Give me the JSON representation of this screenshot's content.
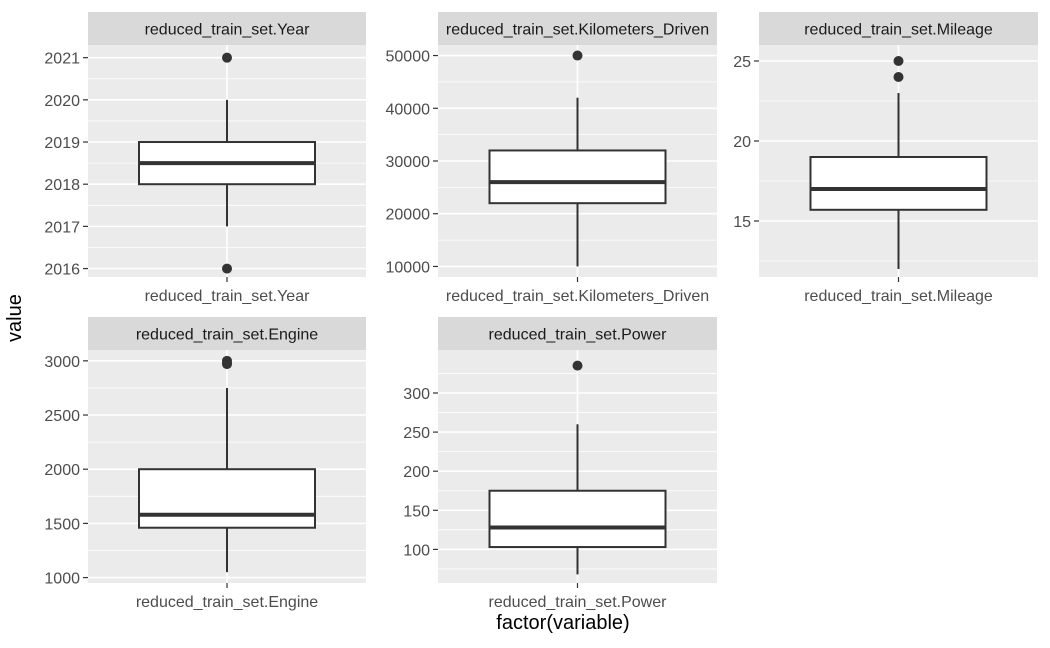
{
  "chart_data": {
    "type": "boxplot",
    "ylabel": "value",
    "xlabel": "factor(variable)",
    "panels": [
      {
        "strip": "reduced_train_set.Year",
        "category": "reduced_train_set.Year",
        "ylim": [
          2015.8,
          2021.3
        ],
        "yticks": [
          2016,
          2017,
          2018,
          2019,
          2020,
          2021
        ],
        "box": {
          "whisker_low": 2017,
          "q1": 2018,
          "median": 2018.5,
          "q3": 2019,
          "whisker_high": 2020
        },
        "outliers": [
          2021,
          2016
        ]
      },
      {
        "strip": "reduced_train_set.Kilometers_Driven",
        "category": "reduced_train_set.Kilometers_Driven",
        "ylim": [
          8000,
          52000
        ],
        "yticks": [
          10000,
          20000,
          30000,
          40000,
          50000
        ],
        "box": {
          "whisker_low": 10000,
          "q1": 22000,
          "median": 26000,
          "q3": 32000,
          "whisker_high": 42000
        },
        "outliers": [
          50000
        ]
      },
      {
        "strip": "reduced_train_set.Mileage",
        "category": "reduced_train_set.Mileage",
        "ylim": [
          11.5,
          26.0
        ],
        "yticks": [
          15,
          20,
          25
        ],
        "box": {
          "whisker_low": 12,
          "q1": 15.7,
          "median": 17,
          "q3": 19,
          "whisker_high": 23
        },
        "outliers": [
          25,
          24
        ]
      },
      {
        "strip": "reduced_train_set.Engine",
        "category": "reduced_train_set.Engine",
        "ylim": [
          950,
          3100
        ],
        "yticks": [
          1000,
          1500,
          2000,
          2500,
          3000
        ],
        "box": {
          "whisker_low": 1050,
          "q1": 1460,
          "median": 1580,
          "q3": 2000,
          "whisker_high": 2750
        },
        "outliers": [
          3000,
          2980,
          2970
        ]
      },
      {
        "strip": "reduced_train_set.Power",
        "category": "reduced_train_set.Power",
        "ylim": [
          57,
          355
        ],
        "yticks": [
          100,
          150,
          200,
          250,
          300
        ],
        "box": {
          "whisker_low": 68,
          "q1": 103,
          "median": 128,
          "q3": 175,
          "whisker_high": 260
        },
        "outliers": [
          335
        ]
      }
    ]
  },
  "colors": {
    "panel_bg": "#ebebeb",
    "grid": "#ffffff",
    "strip_bg": "#d9d9d9",
    "box_line": "#333333",
    "box_fill": "#ffffff",
    "tick_text": "#4d4d4d",
    "strip_text": "#1a1a1a"
  }
}
